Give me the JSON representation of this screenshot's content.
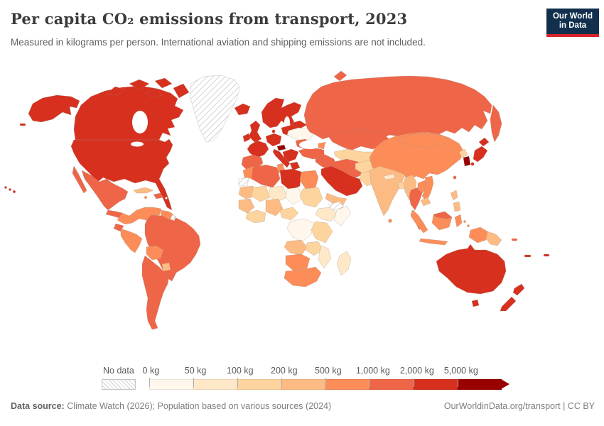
{
  "header": {
    "title": "Per capita CO₂ emissions from transport, 2023",
    "subtitle": "Measured in kilograms per person. International aviation and shipping emissions are not included.",
    "logo_line1": "Our World",
    "logo_line2": "in Data",
    "logo_bg": "#12304e",
    "logo_stripe": "#d8232a"
  },
  "legend": {
    "no_data_label": "No data",
    "ticks": [
      "0 kg",
      "50 kg",
      "100 kg",
      "200 kg",
      "500 kg",
      "1,000 kg",
      "2,000 kg",
      "5,000 kg"
    ],
    "bin_colors": [
      "#fff7ec",
      "#fee8c8",
      "#fdd49e",
      "#fdbb84",
      "#fc8d59",
      "#ef6548",
      "#d7301f",
      "#990000"
    ]
  },
  "footer": {
    "source_label": "Data source:",
    "source_text": " Climate Watch (2026); Population based on various sources (2024)",
    "right_text": "OurWorldinData.org/transport | CC BY"
  },
  "chart_data": {
    "type": "heatmap",
    "subtype": "choropleth-world-map",
    "title": "Per capita CO₂ emissions from transport, 2023",
    "unit": "kg per person",
    "legend_position": "bottom",
    "bins": [
      "0-50 kg",
      "50-100 kg",
      "100-200 kg",
      "200-500 kg",
      "500-1,000 kg",
      "1,000-2,000 kg",
      "2,000-5,000 kg",
      "5,000+ kg",
      "No data"
    ],
    "bin_colors": [
      "#fff7ec",
      "#fee8c8",
      "#fdd49e",
      "#fdbb84",
      "#fc8d59",
      "#ef6548",
      "#d7301f",
      "#990000",
      "hatched"
    ]
  },
  "map": {
    "regions": {
      "alaska": 6,
      "canada": 6,
      "canada_arctic": 6,
      "greenland": "no_data",
      "iceland": 6,
      "usa": 6,
      "hawaii": 6,
      "mexico": 5,
      "central_america": 5,
      "cuba": 3,
      "hispaniola": 5,
      "jamaica": 4,
      "puerto_rico": "no_data",
      "colombia_venezuela": 4,
      "guyanas": 4,
      "french_guiana": "no_data",
      "ecuador": 5,
      "peru": 4,
      "brazil": 5,
      "bolivia": 4,
      "paraguay": 3,
      "argentina_chile": 5,
      "scandinavia": 6,
      "denmark": 6,
      "uk": 6,
      "ireland": 6,
      "france": 6,
      "iberia": 5,
      "germany_central": 6,
      "italy": 6,
      "austria": 7,
      "poland_baltics": 6,
      "belarus": 6,
      "balkans": 6,
      "greece": 6,
      "romania": 5,
      "ukraine": 0,
      "turkey": 5,
      "caucasus": 4,
      "russia": 5,
      "kazakhstan": 5,
      "central_asia": 2,
      "afghanistan": 2,
      "pakistan": 2,
      "iran": 5,
      "iraq_levant": 5,
      "saudi_oman": 6,
      "yemen": 3,
      "morocco": 4,
      "western_sahara": "no_data",
      "algeria": 5,
      "tunisia": 4,
      "libya": 6,
      "egypt": 4,
      "mauritania": 3,
      "mali": 2,
      "niger": 1,
      "chad": 0,
      "sudan": 2,
      "senegal_guinea": 3,
      "west_africa_coast": 2,
      "nigeria": 3,
      "cameroon_car": 2,
      "ethiopia": 1,
      "somalia": 0,
      "somaliland": "no_data",
      "drc": 0,
      "kenya_tanzania": 2,
      "angola": 3,
      "zambia": 2,
      "mozambique": 1,
      "namibia_botswana": 4,
      "south_africa": 4,
      "madagascar": 1,
      "india": 3,
      "sri_lanka": 4,
      "nepal": 1,
      "bangladesh": 2,
      "myanmar": 3,
      "thailand": 5,
      "laos": 4,
      "vietnam": 4,
      "cambodia": 3,
      "malaysia_peninsula": 5,
      "china": 4,
      "mongolia": 4,
      "north_korea": 2,
      "south_korea": 7,
      "japan": 6,
      "taiwan": 5,
      "sumatra": 4,
      "java": 4,
      "borneo_indonesia": 4,
      "borneo_malaysia": 5,
      "sulawesi": 4,
      "philippines": 3,
      "new_guinea_indonesia": 4,
      "papua_new_guinea": 3,
      "solomon_islands": 5,
      "new_caledonia": 6,
      "fiji": 6,
      "australia": 6,
      "tasmania": 6,
      "new_zealand": 6
    }
  }
}
